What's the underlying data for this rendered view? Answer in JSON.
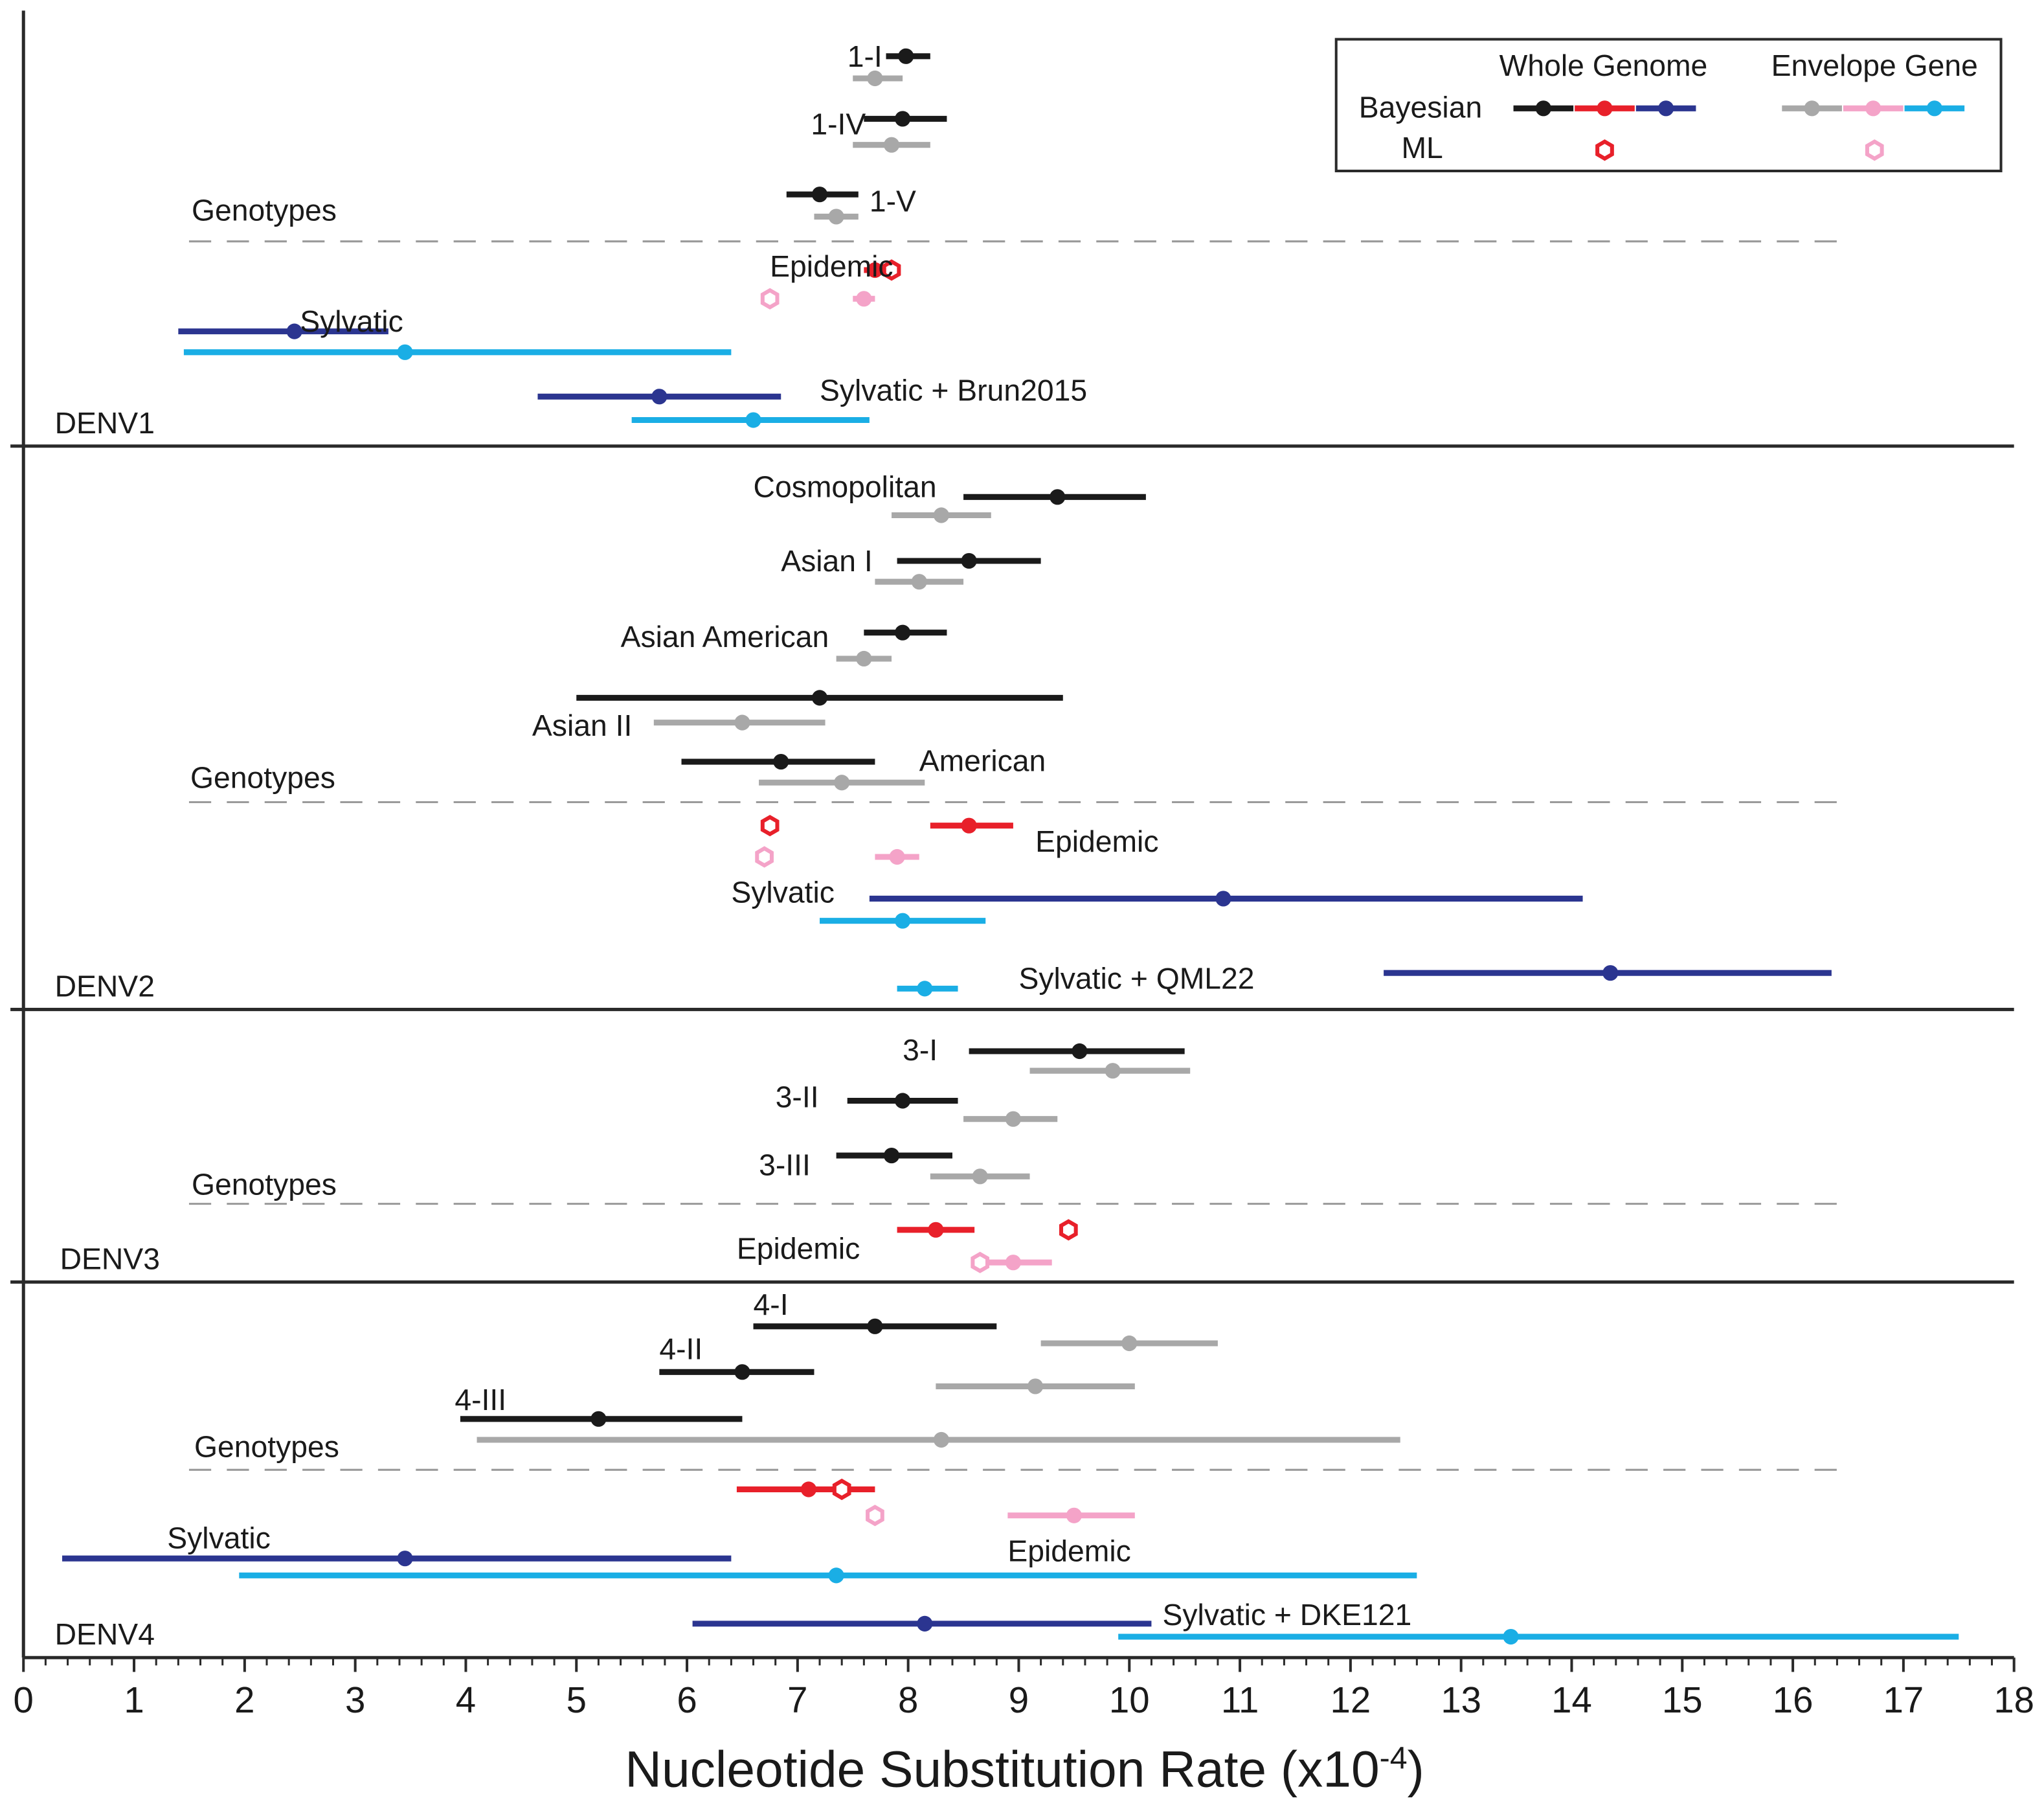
{
  "chart_data": {
    "type": "errorbar",
    "xlabel": "Nucleotide Substitution Rate (x10",
    "xlabel_sup": "-4",
    "xlabel_close": ")",
    "xlim": [
      0,
      18
    ],
    "xticks": [
      "0",
      "1",
      "2",
      "3",
      "4",
      "5",
      "6",
      "7",
      "8",
      "9",
      "10",
      "11",
      "12",
      "13",
      "14",
      "15",
      "16",
      "17",
      "18"
    ],
    "colors": {
      "whole_genotype": "#1a1a1a",
      "whole_epidemic": "#e8202a",
      "whole_sylvatic": "#2b3590",
      "env_genotype": "#a8a8a8",
      "env_epidemic": "#f4a3c8",
      "env_sylvatic": "#1aaee5",
      "frame": "#2a2a2a",
      "dash": "#9a9a9a"
    },
    "legend": {
      "col_whole": "Whole Genome",
      "col_envelope": "Envelope Gene",
      "row_bayesian": "Bayesian",
      "row_ml": "ML"
    },
    "panels": [
      {
        "name": "DENV1",
        "genotypes_label": "Genotypes",
        "labels": [
          {
            "text": "1-I",
            "x": 7.45,
            "y": 45
          },
          {
            "text": "1-IV",
            "x": 7.12,
            "y": 97
          },
          {
            "text": "1-V",
            "x": 7.65,
            "y": 156
          },
          {
            "text": "Epidemic",
            "x": 6.75,
            "y": 206
          },
          {
            "text": "Sylvatic",
            "x": 2.5,
            "y": 248
          },
          {
            "text": "Sylvatic + Brun2015",
            "x": 7.2,
            "y": 301
          }
        ],
        "bars": [
          {
            "y": 43,
            "lo": 7.8,
            "hi": 8.2,
            "mean": 7.98,
            "kind": "whole_genotype"
          },
          {
            "y": 60,
            "lo": 7.5,
            "hi": 7.95,
            "mean": 7.7,
            "kind": "env_genotype"
          },
          {
            "y": 91,
            "lo": 7.6,
            "hi": 8.35,
            "mean": 7.95,
            "kind": "whole_genotype"
          },
          {
            "y": 111,
            "lo": 7.5,
            "hi": 8.2,
            "mean": 7.85,
            "kind": "env_genotype"
          },
          {
            "y": 149,
            "lo": 6.9,
            "hi": 7.55,
            "mean": 7.2,
            "kind": "whole_genotype"
          },
          {
            "y": 166,
            "lo": 7.15,
            "hi": 7.55,
            "mean": 7.35,
            "kind": "env_genotype"
          },
          {
            "y": 207,
            "lo": 7.6,
            "hi": 7.85,
            "mean": 7.7,
            "kind": "whole_epidemic",
            "ml": 7.85
          },
          {
            "y": 229,
            "lo": 7.5,
            "hi": 7.7,
            "mean": 7.6,
            "kind": "env_epidemic",
            "ml": 6.75
          },
          {
            "y": 254,
            "lo": 1.4,
            "hi": 3.3,
            "mean": 2.45,
            "kind": "whole_sylvatic"
          },
          {
            "y": 270,
            "lo": 1.45,
            "hi": 6.4,
            "mean": 3.45,
            "kind": "env_sylvatic"
          },
          {
            "y": 304,
            "lo": 4.65,
            "hi": 6.85,
            "mean": 5.75,
            "kind": "whole_sylvatic"
          },
          {
            "y": 322,
            "lo": 5.5,
            "hi": 7.65,
            "mean": 6.6,
            "kind": "env_sylvatic"
          }
        ]
      },
      {
        "name": "DENV2",
        "genotypes_label": "Genotypes",
        "labels": [
          {
            "text": "Cosmopolitan",
            "x": 6.6,
            "y": 375
          },
          {
            "text": "Asian I",
            "x": 6.85,
            "y": 432
          },
          {
            "text": "Asian American",
            "x": 5.4,
            "y": 490
          },
          {
            "text": "Asian II",
            "x": 4.6,
            "y": 558
          },
          {
            "text": "American",
            "x": 8.1,
            "y": 585
          },
          {
            "text": "Epidemic",
            "x": 9.15,
            "y": 647
          },
          {
            "text": "Sylvatic",
            "x": 6.4,
            "y": 686
          },
          {
            "text": "Sylvatic + QML22",
            "x": 9.0,
            "y": 752
          }
        ],
        "bars": [
          {
            "y": 381,
            "lo": 8.5,
            "hi": 10.15,
            "mean": 9.35,
            "kind": "whole_genotype"
          },
          {
            "y": 395,
            "lo": 7.85,
            "hi": 8.75,
            "mean": 8.3,
            "kind": "env_genotype"
          },
          {
            "y": 430,
            "lo": 7.9,
            "hi": 9.2,
            "mean": 8.55,
            "kind": "whole_genotype"
          },
          {
            "y": 446,
            "lo": 7.7,
            "hi": 8.5,
            "mean": 8.1,
            "kind": "env_genotype"
          },
          {
            "y": 485,
            "lo": 7.6,
            "hi": 8.35,
            "mean": 7.95,
            "kind": "whole_genotype"
          },
          {
            "y": 505,
            "lo": 7.35,
            "hi": 7.85,
            "mean": 7.6,
            "kind": "env_genotype"
          },
          {
            "y": 535,
            "lo": 5.0,
            "hi": 9.4,
            "mean": 7.2,
            "kind": "whole_genotype"
          },
          {
            "y": 554,
            "lo": 5.7,
            "hi": 7.25,
            "mean": 6.5,
            "kind": "env_genotype"
          },
          {
            "y": 584,
            "lo": 5.95,
            "hi": 7.7,
            "mean": 6.85,
            "kind": "whole_genotype"
          },
          {
            "y": 600,
            "lo": 6.65,
            "hi": 8.15,
            "mean": 7.4,
            "kind": "env_genotype"
          },
          {
            "y": 633,
            "lo": 8.2,
            "hi": 8.95,
            "mean": 8.55,
            "kind": "whole_epidemic",
            "ml": 6.75
          },
          {
            "y": 657,
            "lo": 7.7,
            "hi": 8.1,
            "mean": 7.9,
            "kind": "env_epidemic",
            "ml": 6.7
          },
          {
            "y": 689,
            "lo": 7.65,
            "hi": 14.1,
            "mean": 10.85,
            "kind": "whole_sylvatic"
          },
          {
            "y": 706,
            "lo": 7.2,
            "hi": 8.7,
            "mean": 7.95,
            "kind": "env_sylvatic"
          },
          {
            "y": 746,
            "lo": 12.3,
            "hi": 16.35,
            "mean": 14.35,
            "kind": "whole_sylvatic"
          },
          {
            "y": 758,
            "lo": 7.9,
            "hi": 8.45,
            "mean": 8.15,
            "kind": "env_sylvatic"
          }
        ]
      },
      {
        "name": "DENV3",
        "genotypes_label": "Genotypes",
        "labels": [
          {
            "text": "3-I",
            "x": 7.95,
            "y": 807
          },
          {
            "text": "3-II",
            "x": 6.8,
            "y": 843
          },
          {
            "text": "3-III",
            "x": 6.65,
            "y": 895
          },
          {
            "text": "Epidemic",
            "x": 6.45,
            "y": 959
          }
        ],
        "bars": [
          {
            "y": 806,
            "lo": 8.55,
            "hi": 10.5,
            "mean": 9.55,
            "kind": "whole_genotype"
          },
          {
            "y": 821,
            "lo": 9.1,
            "hi": 10.55,
            "mean": 9.85,
            "kind": "env_genotype"
          },
          {
            "y": 844,
            "lo": 7.45,
            "hi": 8.45,
            "mean": 7.95,
            "kind": "whole_genotype"
          },
          {
            "y": 858,
            "lo": 8.5,
            "hi": 9.35,
            "mean": 8.95,
            "kind": "env_genotype"
          },
          {
            "y": 886,
            "lo": 7.35,
            "hi": 8.4,
            "mean": 7.85,
            "kind": "whole_genotype"
          },
          {
            "y": 902,
            "lo": 8.2,
            "hi": 9.1,
            "mean": 8.65,
            "kind": "env_genotype"
          },
          {
            "y": 943,
            "lo": 7.9,
            "hi": 8.6,
            "mean": 8.25,
            "kind": "whole_epidemic",
            "ml": 9.45
          },
          {
            "y": 968,
            "lo": 8.65,
            "hi": 9.3,
            "mean": 8.95,
            "kind": "env_epidemic",
            "ml": 8.65
          }
        ]
      },
      {
        "name": "DENV4",
        "genotypes_label": "Genotypes",
        "labels": [
          {
            "text": "4-I",
            "x": 6.6,
            "y": 1002
          },
          {
            "text": "4-II",
            "x": 5.75,
            "y": 1036
          },
          {
            "text": "4-III",
            "x": 3.9,
            "y": 1075
          },
          {
            "text": "Sylvatic",
            "x": 1.3,
            "y": 1181
          },
          {
            "text": "Epidemic",
            "x": 8.9,
            "y": 1191
          },
          {
            "text": "Sylvatic + DKE121",
            "x": 10.3,
            "y": 1240
          }
        ],
        "bars": [
          {
            "y": 1017,
            "lo": 6.6,
            "hi": 8.8,
            "mean": 7.7,
            "kind": "whole_genotype"
          },
          {
            "y": 1030,
            "lo": 9.2,
            "hi": 10.8,
            "mean": 10.0,
            "kind": "env_genotype"
          },
          {
            "y": 1052,
            "lo": 5.75,
            "hi": 7.15,
            "mean": 6.5,
            "kind": "whole_genotype"
          },
          {
            "y": 1063,
            "lo": 8.25,
            "hi": 10.05,
            "mean": 9.15,
            "kind": "env_genotype"
          },
          {
            "y": 1088,
            "lo": 3.95,
            "hi": 6.5,
            "mean": 5.2,
            "kind": "whole_genotype"
          },
          {
            "y": 1104,
            "lo": 4.1,
            "hi": 12.45,
            "mean": 8.3,
            "kind": "env_genotype"
          },
          {
            "y": 1142,
            "lo": 6.45,
            "hi": 7.7,
            "mean": 7.1,
            "kind": "whole_epidemic",
            "ml": 7.4
          },
          {
            "y": 1162,
            "lo": 8.9,
            "hi": 10.05,
            "mean": 9.5,
            "kind": "env_epidemic",
            "ml": 7.7
          },
          {
            "y": 1195,
            "lo": 0.35,
            "hi": 6.4,
            "mean": 3.45,
            "kind": "whole_sylvatic"
          },
          {
            "y": 1208,
            "lo": 1.95,
            "hi": 12.6,
            "mean": 7.35,
            "kind": "env_sylvatic"
          },
          {
            "y": 1245,
            "lo": 6.05,
            "hi": 10.2,
            "mean": 8.15,
            "kind": "whole_sylvatic"
          },
          {
            "y": 1255,
            "lo": 9.9,
            "hi": 17.5,
            "mean": 13.45,
            "kind": "env_sylvatic"
          }
        ]
      }
    ]
  }
}
